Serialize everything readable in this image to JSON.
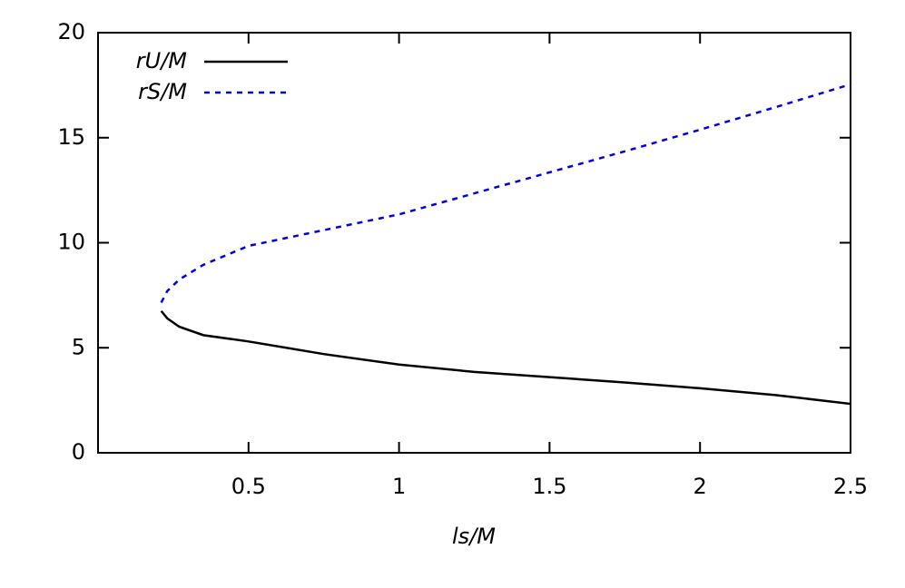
{
  "chart_data": {
    "type": "line",
    "x_label": "ls/M",
    "x": [
      0.21,
      0.23,
      0.27,
      0.35,
      0.5,
      0.75,
      1,
      1.25,
      1.5,
      1.75,
      2,
      2.25,
      2.5
    ],
    "series": [
      {
        "name": "rU/M",
        "color": "#000000",
        "dash": false,
        "values": [
          6.75,
          6.4,
          6.0,
          5.6,
          5.3,
          4.7,
          4.2,
          3.85,
          3.6,
          3.35,
          3.07,
          2.75,
          2.33
        ]
      },
      {
        "name": "rS/M",
        "color": "#0000e0",
        "dash": true,
        "values": [
          7.15,
          7.7,
          8.25,
          8.95,
          9.85,
          10.6,
          11.35,
          12.35,
          13.35,
          14.35,
          15.38,
          16.45,
          17.54
        ]
      }
    ],
    "xlim": [
      0,
      2.5
    ],
    "xticks": [
      0.5,
      1,
      1.5,
      2,
      2.5
    ],
    "ylim": [
      0,
      20
    ],
    "yticks": [
      0,
      5,
      10,
      15,
      20
    ],
    "legend": "top-left"
  }
}
